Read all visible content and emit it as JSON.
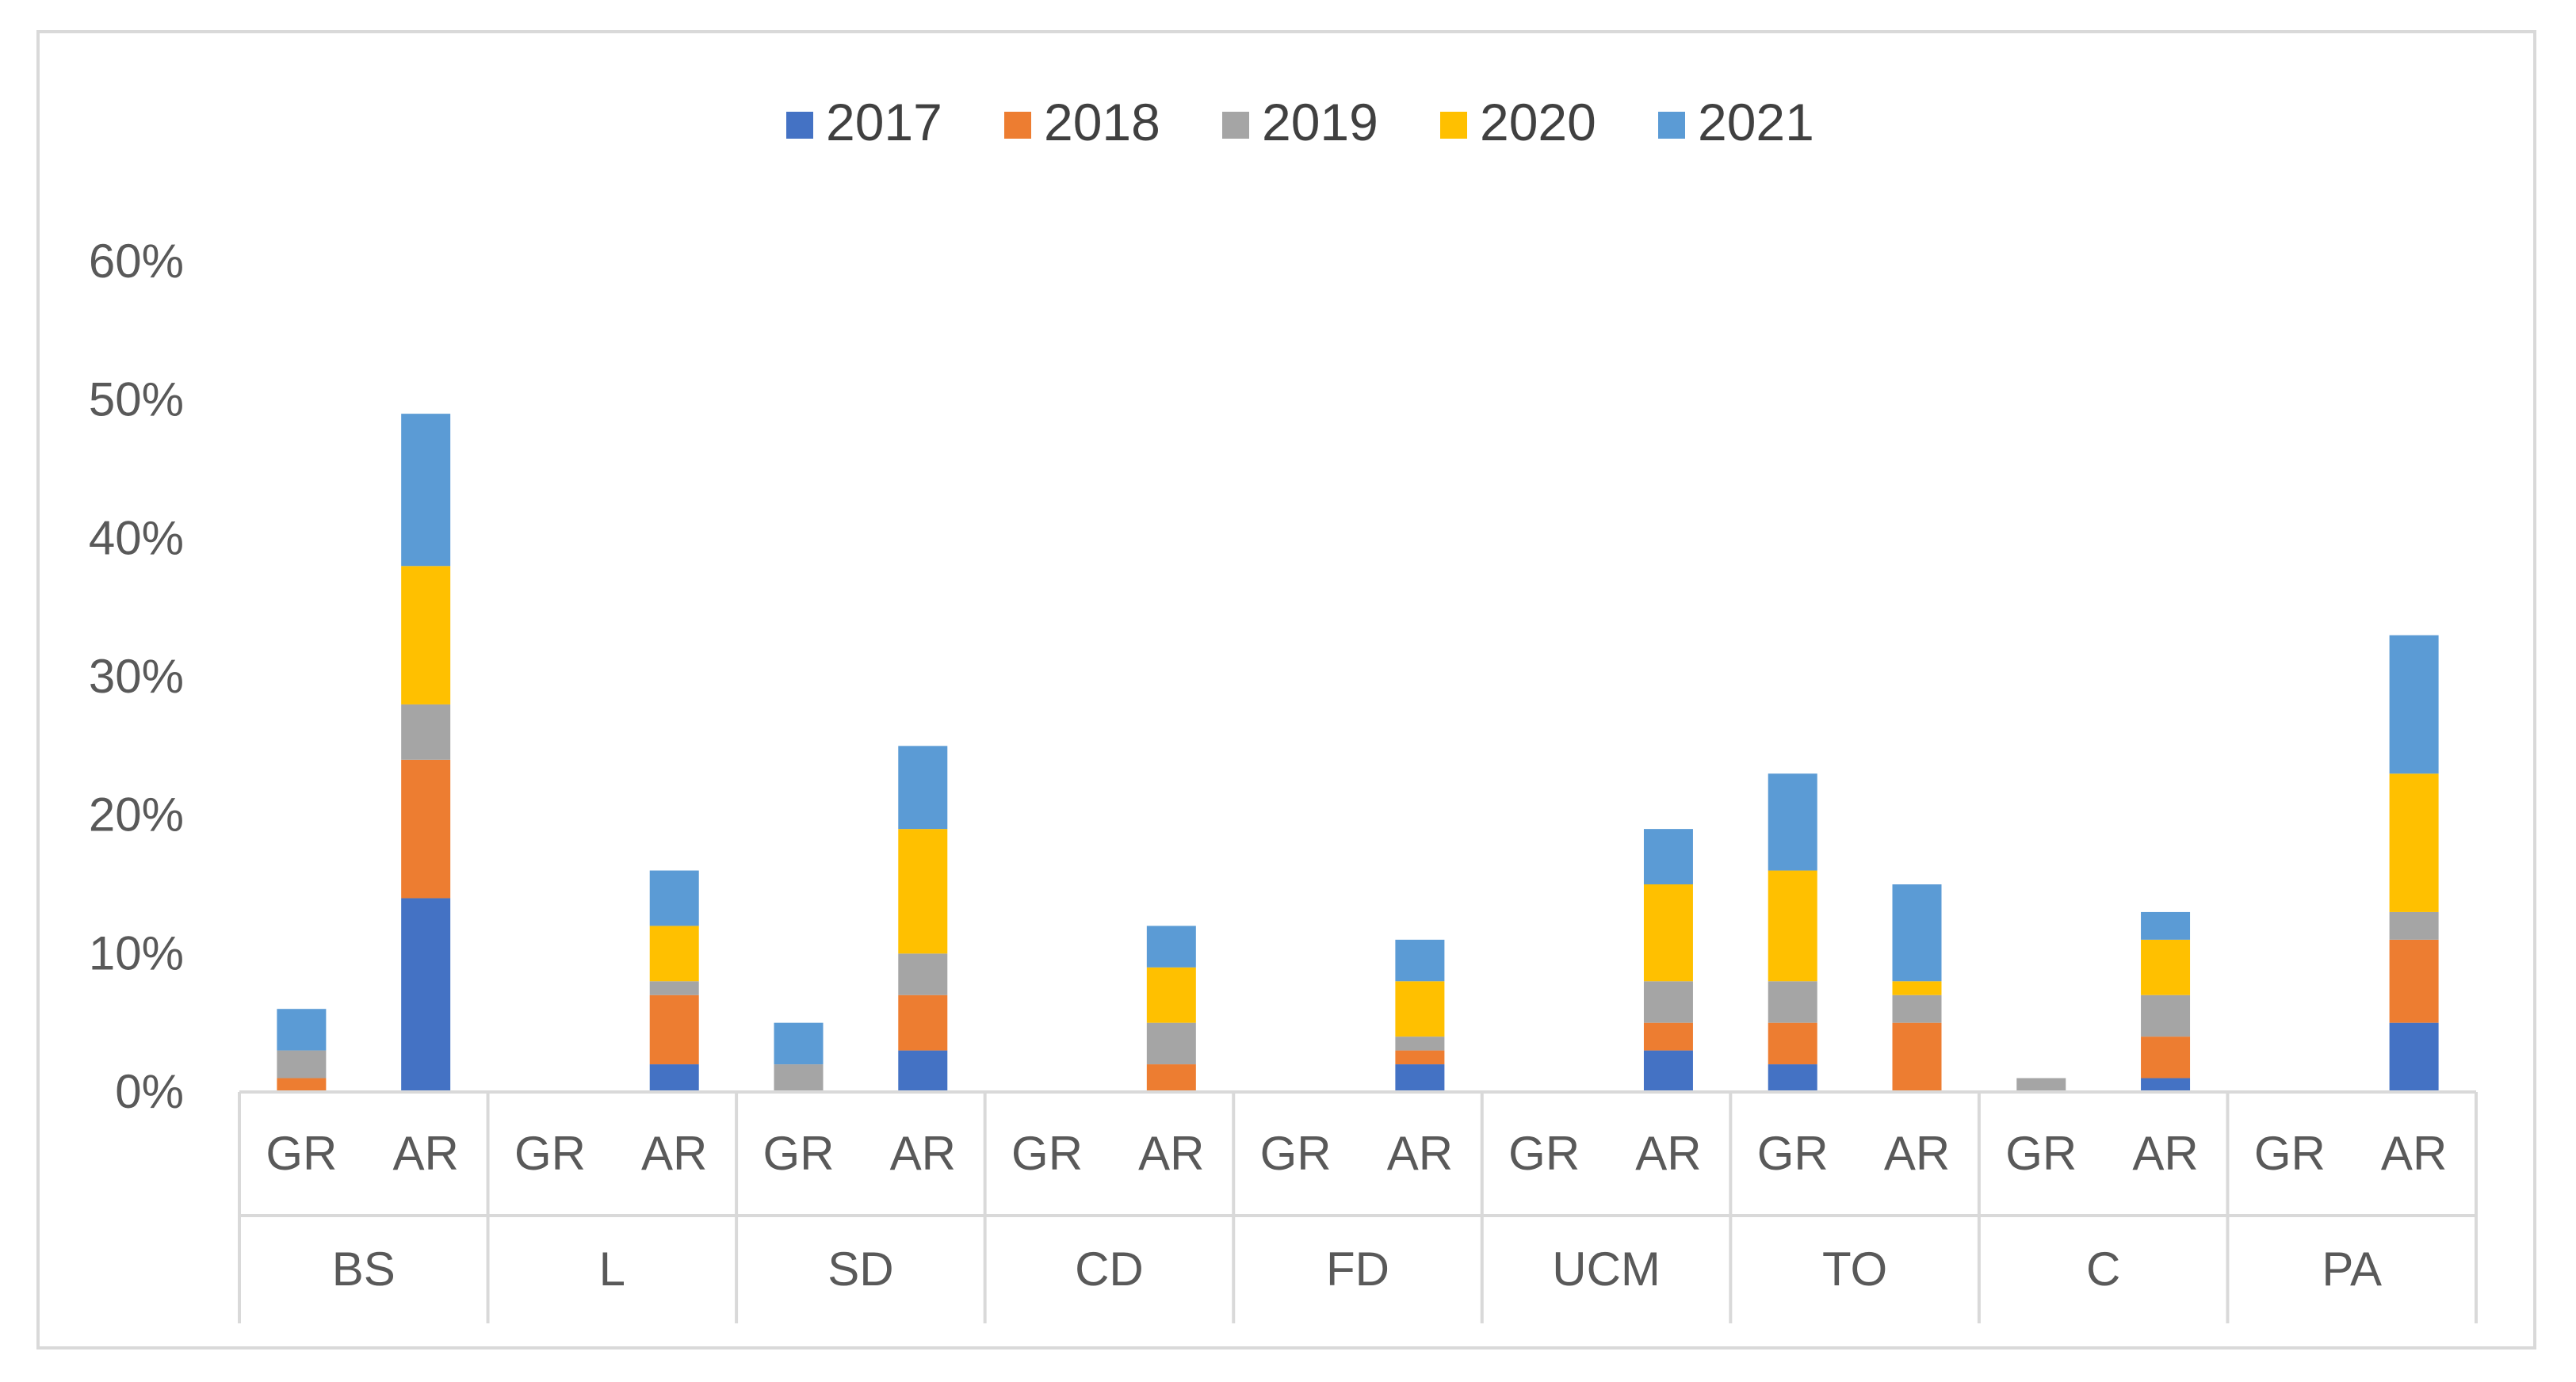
{
  "chart_data": {
    "type": "bar",
    "stacked": true,
    "title": "",
    "xlabel": "",
    "ylabel": "",
    "ylim": [
      0,
      60
    ],
    "yticks": [
      0,
      10,
      20,
      30,
      40,
      50,
      60
    ],
    "ytick_labels": [
      "0%",
      "10%",
      "20%",
      "30%",
      "40%",
      "50%",
      "60%"
    ],
    "grid": false,
    "legend_position": "top",
    "groups": [
      "BS",
      "L",
      "SD",
      "CD",
      "FD",
      "UCM",
      "TO",
      "C",
      "PA"
    ],
    "subcategories": [
      "GR",
      "AR"
    ],
    "categories": [
      "BS-GR",
      "BS-AR",
      "L-GR",
      "L-AR",
      "SD-GR",
      "SD-AR",
      "CD-GR",
      "CD-AR",
      "FD-GR",
      "FD-AR",
      "UCM-GR",
      "UCM-AR",
      "TO-GR",
      "TO-AR",
      "C-GR",
      "C-AR",
      "PA-GR",
      "PA-AR"
    ],
    "series": [
      {
        "name": "2017",
        "color": "#4472c4",
        "values": [
          0,
          14,
          0,
          2,
          0,
          3,
          0,
          0,
          0,
          2,
          0,
          3,
          2,
          0,
          0,
          1,
          0,
          5
        ]
      },
      {
        "name": "2018",
        "color": "#ed7d31",
        "values": [
          1,
          10,
          0,
          5,
          0,
          4,
          0,
          2,
          0,
          1,
          0,
          2,
          3,
          5,
          0,
          3,
          0,
          6
        ]
      },
      {
        "name": "2019",
        "color": "#a5a5a5",
        "values": [
          2,
          4,
          0,
          1,
          2,
          3,
          0,
          3,
          0,
          1,
          0,
          3,
          3,
          2,
          1,
          3,
          0,
          2
        ]
      },
      {
        "name": "2020",
        "color": "#ffc000",
        "values": [
          0,
          10,
          0,
          4,
          0,
          9,
          0,
          4,
          0,
          4,
          0,
          7,
          8,
          1,
          0,
          4,
          0,
          10
        ]
      },
      {
        "name": "2021",
        "color": "#5b9bd5",
        "values": [
          3,
          11,
          0,
          4,
          3,
          6,
          0,
          3,
          0,
          3,
          0,
          4,
          7,
          7,
          0,
          2,
          0,
          10
        ]
      }
    ]
  }
}
